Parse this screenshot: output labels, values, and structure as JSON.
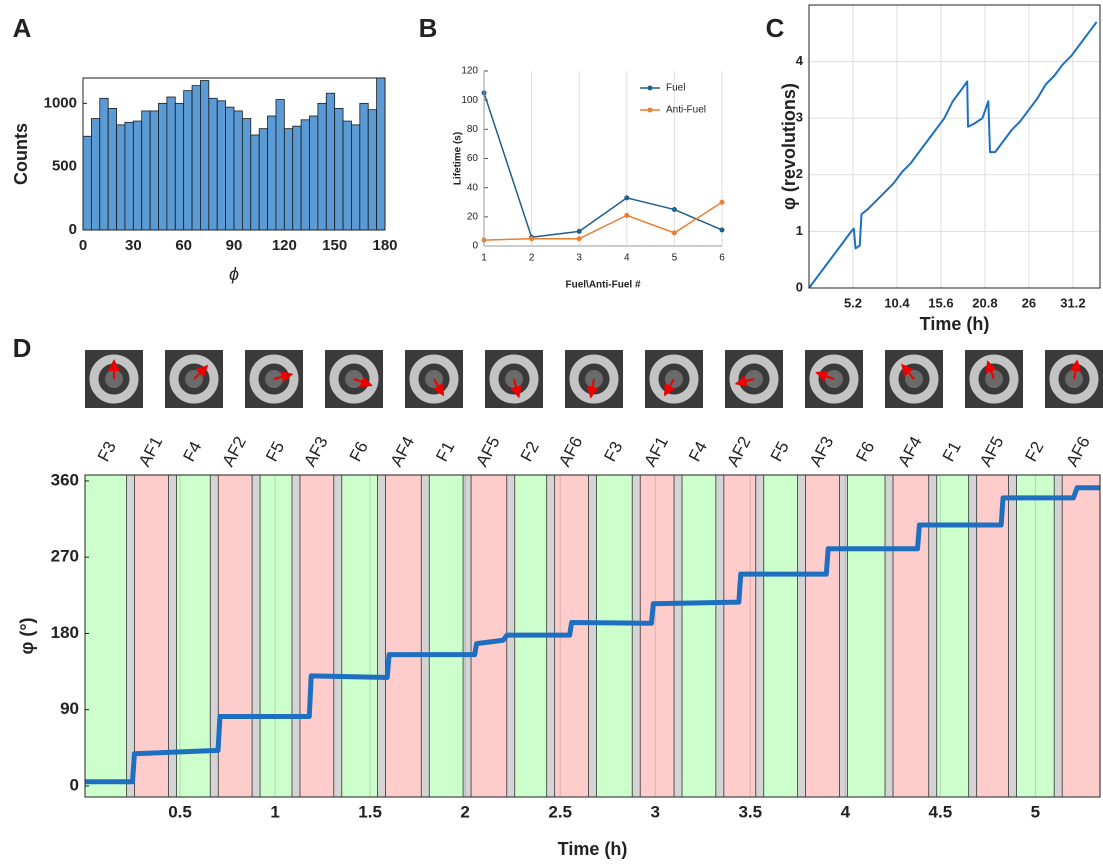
{
  "chart_data": [
    {
      "type": "histogram",
      "panel_label": "A",
      "xlabel": "ϕ",
      "ylabel": "Counts",
      "bins": [
        0,
        5,
        10,
        15,
        20,
        25,
        30,
        35,
        40,
        45,
        50,
        55,
        60,
        65,
        70,
        75,
        80,
        85,
        90,
        95,
        100,
        105,
        110,
        115,
        120,
        125,
        130,
        135,
        140,
        145,
        150,
        155,
        160,
        165,
        170,
        175,
        180
      ],
      "values": [
        740,
        880,
        1040,
        960,
        830,
        850,
        860,
        940,
        940,
        1000,
        1050,
        1000,
        1100,
        1140,
        1180,
        1040,
        1020,
        970,
        940,
        880,
        750,
        800,
        900,
        1030,
        800,
        820,
        870,
        900,
        1000,
        1080,
        960,
        860,
        830,
        1000,
        950,
        1200
      ],
      "color": "#5b9bd5",
      "xlim": [
        0,
        180
      ],
      "xticks": [
        0,
        30,
        60,
        90,
        120,
        150,
        180
      ],
      "ylim": [
        0,
        1200
      ],
      "yticks": [
        0,
        500,
        1000
      ],
      "grid": "none"
    },
    {
      "type": "line",
      "panel_label": "B",
      "xlabel": "Fuel\\Anti-Fuel #",
      "ylabel": "Lifetime (s)",
      "x": [
        1,
        2,
        3,
        4,
        5,
        6
      ],
      "series": [
        {
          "name": "Fuel",
          "color": "#1f5f8b",
          "values": [
            105,
            6,
            10,
            33,
            25,
            11
          ]
        },
        {
          "name": "Anti-Fuel",
          "color": "#ed7d31",
          "values": [
            4,
            5,
            5,
            21,
            9,
            30
          ]
        }
      ],
      "markers": true,
      "xlim": [
        1,
        6
      ],
      "xticks": [
        1,
        2,
        3,
        4,
        5,
        6
      ],
      "ylim": [
        0,
        120
      ],
      "yticks": [
        0,
        20,
        40,
        60,
        80,
        100,
        120
      ],
      "grid": "x",
      "legend": "top-right"
    },
    {
      "type": "line",
      "panel_label": "C",
      "xlabel": "Time (h)",
      "ylabel": "φ (revolutions)",
      "x": [
        0,
        1,
        2,
        3,
        4,
        5,
        5.3,
        5.5,
        6,
        6.2,
        7,
        8,
        9,
        10,
        11,
        12,
        13,
        14,
        15,
        16,
        17,
        18,
        18.7,
        18.8,
        19.5,
        20.5,
        21.2,
        21.4,
        22,
        23,
        24,
        25,
        26,
        27,
        28,
        29,
        30,
        31,
        32,
        33,
        34
      ],
      "values": [
        0,
        0.2,
        0.4,
        0.6,
        0.8,
        1.0,
        1.05,
        0.7,
        0.75,
        1.3,
        1.4,
        1.55,
        1.7,
        1.85,
        2.05,
        2.2,
        2.4,
        2.6,
        2.8,
        3.0,
        3.3,
        3.5,
        3.65,
        2.85,
        2.9,
        3.0,
        3.3,
        2.4,
        2.4,
        2.6,
        2.8,
        2.95,
        3.15,
        3.35,
        3.6,
        3.75,
        3.95,
        4.1,
        4.3,
        4.5,
        4.7
      ],
      "color": "#1f6fc0",
      "xlim": [
        0,
        34.4
      ],
      "xticks": [
        5.2,
        10.4,
        15.6,
        20.8,
        26,
        31.2
      ],
      "ylim": [
        0,
        5
      ],
      "yticks": [
        0,
        1,
        2,
        3,
        4
      ],
      "grid": "both"
    },
    {
      "type": "line",
      "panel_label": "D",
      "xlabel": "Time (h)",
      "ylabel": "φ (°)",
      "x": [
        0,
        0.25,
        0.26,
        0.7,
        0.71,
        1.18,
        1.19,
        1.59,
        1.6,
        2.05,
        2.06,
        2.2,
        2.22,
        2.55,
        2.56,
        2.98,
        2.99,
        3.44,
        3.45,
        3.9,
        3.91,
        4.38,
        4.39,
        4.82,
        4.83,
        5.2,
        5.22,
        5.34
      ],
      "values": [
        5,
        5,
        38,
        42,
        82,
        82,
        130,
        128,
        155,
        155,
        168,
        172,
        178,
        178,
        193,
        192,
        215,
        217,
        250,
        250,
        280,
        280,
        308,
        308,
        340,
        340,
        352,
        352
      ],
      "color": "#1f6fc0",
      "xlim": [
        0,
        5.34
      ],
      "xticks": [
        0.5,
        1,
        1.5,
        2,
        2.5,
        3,
        3.5,
        4,
        4.5,
        5
      ],
      "ylim": [
        -13,
        367
      ],
      "yticks": [
        0,
        90,
        180,
        270,
        360
      ],
      "grid": "x",
      "bands": {
        "labels": [
          "F3",
          "AF1",
          "F4",
          "AF2",
          "F5",
          "AF3",
          "F6",
          "AF4",
          "F1",
          "AF5",
          "F2",
          "AF6",
          "F3",
          "AF1",
          "F4",
          "AF2",
          "F5",
          "AF3",
          "F6",
          "AF4",
          "F1",
          "AF5",
          "F2",
          "AF6"
        ],
        "edges": [
          0,
          0.24,
          0.46,
          0.68,
          0.9,
          1.11,
          1.33,
          1.56,
          1.79,
          2.01,
          2.24,
          2.45,
          2.67,
          2.9,
          3.12,
          3.34,
          3.55,
          3.77,
          3.99,
          4.23,
          4.46,
          4.67,
          4.88,
          5.12,
          5.34
        ],
        "fills": {
          "F": "#ccffcc",
          "AF": "#ffcccc"
        },
        "label_colors": {
          "F": "#22dd00",
          "AF": "#e8141a"
        }
      }
    }
  ]
}
